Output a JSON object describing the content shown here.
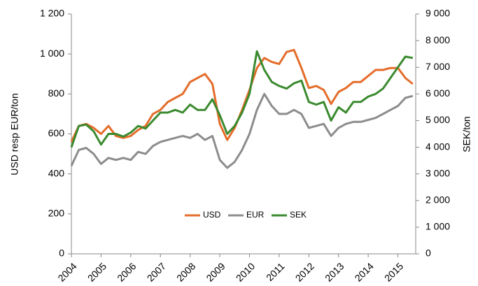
{
  "chart_data": {
    "type": "line",
    "ylabel": "USD resp EUR/ton",
    "y2label": "SEK/ton",
    "x": [
      2004,
      2004.25,
      2004.5,
      2004.75,
      2005,
      2005.25,
      2005.5,
      2005.75,
      2006,
      2006.25,
      2006.5,
      2006.75,
      2007,
      2007.25,
      2007.5,
      2007.75,
      2008,
      2008.25,
      2008.5,
      2008.75,
      2009,
      2009.25,
      2009.5,
      2009.75,
      2010,
      2010.25,
      2010.5,
      2010.75,
      2011,
      2011.25,
      2011.5,
      2011.75,
      2012,
      2012.25,
      2012.5,
      2012.75,
      2013,
      2013.25,
      2013.5,
      2013.75,
      2014,
      2014.25,
      2014.5,
      2014.75,
      2015,
      2015.25,
      2015.5
    ],
    "series": [
      {
        "name": "USD",
        "color": "#e46c2a",
        "values": [
          560,
          640,
          650,
          630,
          600,
          640,
          590,
          580,
          590,
          620,
          640,
          700,
          720,
          760,
          780,
          800,
          860,
          880,
          900,
          850,
          650,
          570,
          630,
          720,
          820,
          930,
          980,
          960,
          950,
          1010,
          1020,
          930,
          830,
          840,
          820,
          750,
          810,
          830,
          860,
          860,
          890,
          920,
          920,
          930,
          930,
          880,
          850
        ]
      },
      {
        "name": "EUR",
        "color": "#8c8c8c",
        "values": [
          440,
          520,
          530,
          500,
          450,
          480,
          470,
          480,
          470,
          510,
          500,
          540,
          560,
          570,
          580,
          590,
          580,
          600,
          570,
          590,
          470,
          430,
          460,
          520,
          600,
          720,
          800,
          740,
          700,
          700,
          720,
          700,
          630,
          640,
          650,
          590,
          630,
          650,
          660,
          660,
          670,
          680,
          700,
          720,
          740,
          780,
          790
        ]
      },
      {
        "name": "SEK",
        "color": "#3a8a2e",
        "axis": "y2",
        "values": [
          4000,
          4800,
          4850,
          4600,
          4100,
          4500,
          4500,
          4400,
          4550,
          4800,
          4700,
          5000,
          5300,
          5300,
          5400,
          5300,
          5600,
          5400,
          5400,
          5800,
          5200,
          4500,
          4800,
          5300,
          6000,
          7600,
          6900,
          6450,
          6300,
          6200,
          6400,
          6500,
          5700,
          5600,
          5700,
          5000,
          5500,
          5300,
          5700,
          5700,
          5900,
          6000,
          6200,
          6600,
          7000,
          7400,
          7350
        ]
      }
    ],
    "xlim": [
      2004,
      2015.6
    ],
    "xticks": [
      2004,
      2005,
      2006,
      2007,
      2008,
      2009,
      2010,
      2011,
      2012,
      2013,
      2014,
      2015
    ],
    "ylim": [
      0,
      1200
    ],
    "yticks": [
      0,
      200,
      400,
      600,
      800,
      {
        "value": 1000,
        "label": "1 000"
      },
      {
        "value": 1200,
        "label": "1 200"
      }
    ],
    "y2lim": [
      0,
      9000
    ],
    "y2ticks": [
      0,
      {
        "value": 1000,
        "label": "1 000"
      },
      {
        "value": 2000,
        "label": "2 000"
      },
      {
        "value": 3000,
        "label": "3 000"
      },
      {
        "value": 4000,
        "label": "4 000"
      },
      {
        "value": 5000,
        "label": "5 000"
      },
      {
        "value": 6000,
        "label": "6 000"
      },
      {
        "value": 7000,
        "label": "7 000"
      },
      {
        "value": 8000,
        "label": "8 000"
      },
      {
        "value": 9000,
        "label": "9 000"
      }
    ],
    "legend": "bottom"
  }
}
